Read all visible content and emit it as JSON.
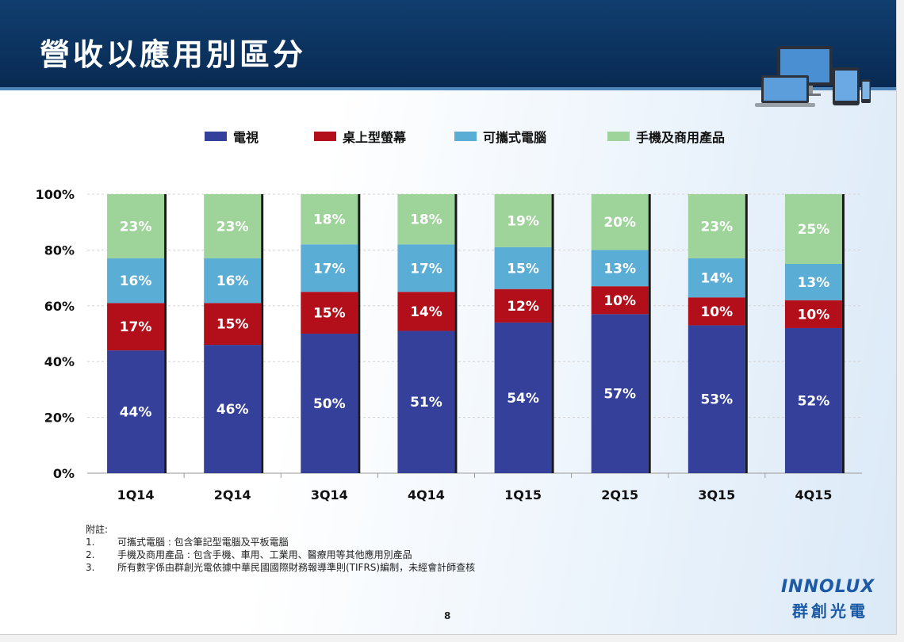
{
  "title": "營收以應用別區分",
  "chart_data": {
    "type": "bar",
    "stacked": true,
    "categories": [
      "1Q14",
      "2Q14",
      "3Q14",
      "4Q14",
      "1Q15",
      "2Q15",
      "3Q15",
      "4Q15"
    ],
    "series": [
      {
        "name": "電視",
        "values": [
          44,
          46,
          50,
          51,
          54,
          57,
          53,
          52
        ],
        "labels": [
          "44%",
          "46%",
          "50%",
          "51%",
          "54%",
          "57%",
          "53%",
          "52%"
        ],
        "color": "#34409a"
      },
      {
        "name": "桌上型螢幕",
        "values": [
          17,
          15,
          15,
          14,
          12,
          10,
          10,
          10
        ],
        "labels": [
          "17%",
          "15%",
          "15%",
          "14%",
          "12%",
          "10%",
          "10%",
          "10%"
        ],
        "color": "#b20f1b"
      },
      {
        "name": "可攜式電腦",
        "values": [
          16,
          16,
          17,
          17,
          15,
          13,
          14,
          13
        ],
        "labels": [
          "16%",
          "16%",
          "17%",
          "17%",
          "15%",
          "13%",
          "14%",
          "13%"
        ],
        "color": "#5aaed6"
      },
      {
        "name": "手機及商用產品",
        "values": [
          23,
          23,
          18,
          18,
          19,
          20,
          23,
          25
        ],
        "labels": [
          "23%",
          "23%",
          "18%",
          "18%",
          "19%",
          "20%",
          "23%",
          "25%"
        ],
        "color": "#9ed49a"
      }
    ],
    "ylim": [
      0,
      100
    ],
    "yticks": [
      "0%",
      "20%",
      "40%",
      "60%",
      "80%",
      "100%"
    ],
    "ytick_values": [
      0,
      20,
      40,
      60,
      80,
      100
    ],
    "grid": true,
    "legend_position": "top"
  },
  "notes": {
    "heading": "附註:",
    "items": [
      {
        "num": "1.",
        "text": "可攜式電腦 : 包含筆記型電腦及平板電腦"
      },
      {
        "num": "2.",
        "text": "手機及商用產品 : 包含手機、車用、工業用、醫療用等其他應用別產品"
      },
      {
        "num": "3.",
        "text": "所有數字係由群創光電依據中華民國國際財務報導準則(TIFRS)編制，未經會計師查核"
      }
    ]
  },
  "page_number": "8",
  "logo": {
    "en": "INNOLUX",
    "zh": "群創光電"
  }
}
